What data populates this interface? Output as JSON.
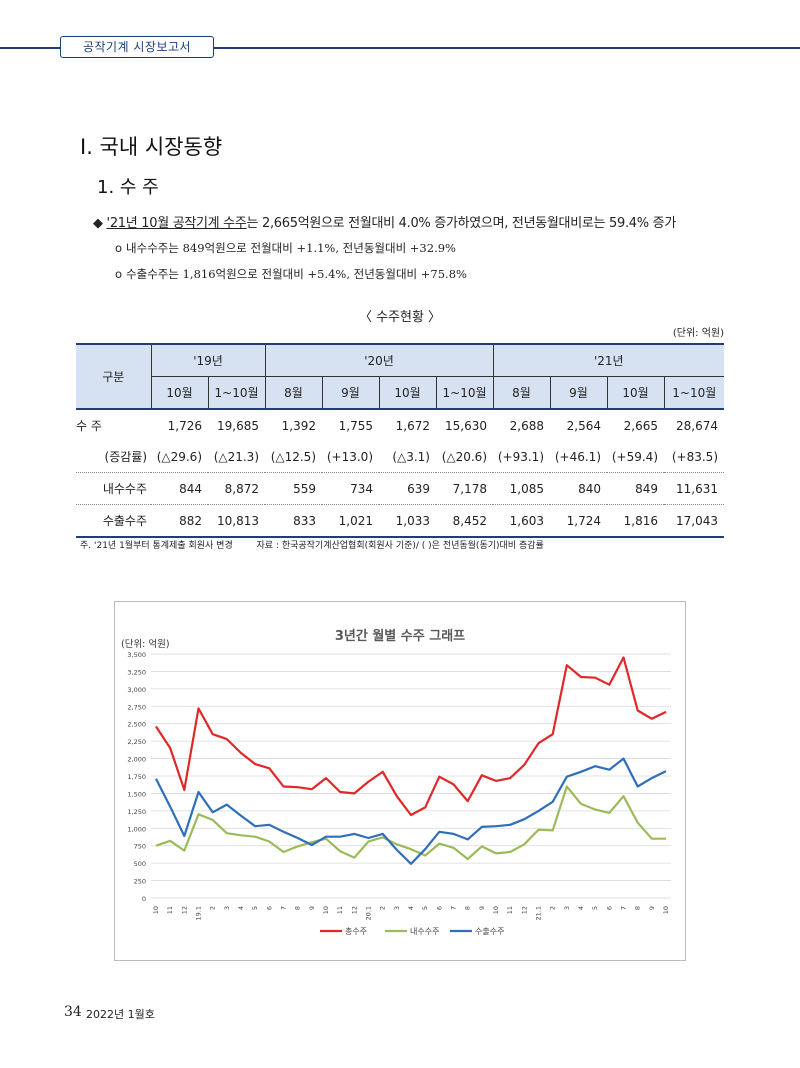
{
  "header": {
    "title": "공작기계 시장보고서"
  },
  "section": {
    "title": "Ⅰ. 국내 시장동향",
    "subtitle": "1. 수 주"
  },
  "summary": {
    "main_diamond": "◆",
    "main_underlined": "'21년 10월 공작기계 수주",
    "main_rest": "는 2,665억원으로 전월대비 4.0% 증가하였으며, 전년동월대비로는 59.4% 증가",
    "sub_icon": "o",
    "sub1": "내수수주는 849억원으로 전월대비 +1.1%, 전년동월대비 +32.9%",
    "sub2": "수출수주는 1,816억원으로 전월대비 +5.4%, 전년동월대비 +75.8%"
  },
  "table": {
    "title": "〈 수주현황 〉",
    "unit": "(단위: 억원)",
    "category_header": "구분",
    "years": [
      "'19년",
      "'20년",
      "'21년"
    ],
    "months": [
      "10월",
      "1~10월",
      "8월",
      "9월",
      "10월",
      "1~10월",
      "8월",
      "9월",
      "10월",
      "1~10월"
    ],
    "rows": [
      {
        "label": "수  주",
        "values": [
          "1,726",
          "19,685",
          "1,392",
          "1,755",
          "1,672",
          "15,630",
          "2,688",
          "2,564",
          "2,665",
          "28,674"
        ]
      },
      {
        "label": "(증감률)",
        "values": [
          "(△29.6)",
          "(△21.3)",
          "(△12.5)",
          "(+13.0)",
          "(△3.1)",
          "(△20.6)",
          "(+93.1)",
          "(+46.1)",
          "(+59.4)",
          "(+83.5)"
        ]
      },
      {
        "label": "내수수주",
        "values": [
          "844",
          "8,872",
          "559",
          "734",
          "639",
          "7,178",
          "1,085",
          "840",
          "849",
          "11,631"
        ]
      },
      {
        "label": "수출수주",
        "values": [
          "882",
          "10,813",
          "833",
          "1,021",
          "1,033",
          "8,452",
          "1,603",
          "1,724",
          "1,816",
          "17,043"
        ]
      }
    ]
  },
  "footnote": {
    "note": "주. '21년 1월부터 통계제출 회원사 변경",
    "source": "자료 : 한국공작기계산업협회(회원사 기준)/ (  )은 전년동월(동기)대비 증감률"
  },
  "chart_data": {
    "type": "line",
    "title": "3년간 월별 수주 그래프",
    "unit_label": "(단위: 억원)",
    "ylim": [
      0,
      3500
    ],
    "yticks": [
      0,
      250,
      500,
      750,
      1000,
      1250,
      1500,
      1750,
      2000,
      2250,
      2500,
      2750,
      3000,
      3250,
      3500
    ],
    "ytick_labels": [
      "0",
      "250",
      "500",
      "750",
      "1,000",
      "1,250",
      "1,500",
      "1,750",
      "2,000",
      "2,250",
      "2,500",
      "2,750",
      "3,000",
      "3,250",
      "3,500"
    ],
    "grid": true,
    "legend_position": "bottom",
    "categories": [
      "10",
      "11",
      "12",
      "19.1",
      "2",
      "3",
      "4",
      "5",
      "6",
      "7",
      "8",
      "9",
      "10",
      "11",
      "12",
      "20.1",
      "2",
      "3",
      "4",
      "5",
      "6",
      "7",
      "8",
      "9",
      "10",
      "11",
      "12",
      "21.1",
      "2",
      "3",
      "4",
      "5",
      "6",
      "7",
      "8",
      "9",
      "10"
    ],
    "series": [
      {
        "name": "총수주",
        "color": "#e02828",
        "values": [
          2460,
          2150,
          1550,
          2720,
          2350,
          2280,
          2080,
          1920,
          1860,
          1600,
          1590,
          1560,
          1720,
          1520,
          1500,
          1670,
          1810,
          1460,
          1190,
          1300,
          1740,
          1630,
          1390,
          1760,
          1680,
          1720,
          1910,
          2220,
          2350,
          3340,
          3170,
          3160,
          3060,
          3450,
          2690,
          2570,
          2670
        ]
      },
      {
        "name": "내수수주",
        "color": "#9bbb59",
        "values": [
          750,
          820,
          680,
          1200,
          1120,
          930,
          900,
          880,
          810,
          660,
          740,
          800,
          850,
          670,
          580,
          810,
          870,
          770,
          700,
          610,
          780,
          720,
          560,
          740,
          640,
          660,
          770,
          980,
          970,
          1600,
          1350,
          1270,
          1220,
          1460,
          1080,
          850,
          850
        ]
      },
      {
        "name": "수출수주",
        "color": "#2e6fb7",
        "values": [
          1710,
          1310,
          890,
          1520,
          1230,
          1340,
          1180,
          1030,
          1050,
          950,
          860,
          760,
          880,
          880,
          920,
          860,
          920,
          690,
          490,
          700,
          950,
          920,
          840,
          1020,
          1030,
          1050,
          1130,
          1250,
          1380,
          1740,
          1810,
          1890,
          1840,
          2000,
          1600,
          1720,
          1820
        ]
      }
    ]
  },
  "footer": {
    "page_number": "34",
    "issue": "2022년 1월호"
  }
}
